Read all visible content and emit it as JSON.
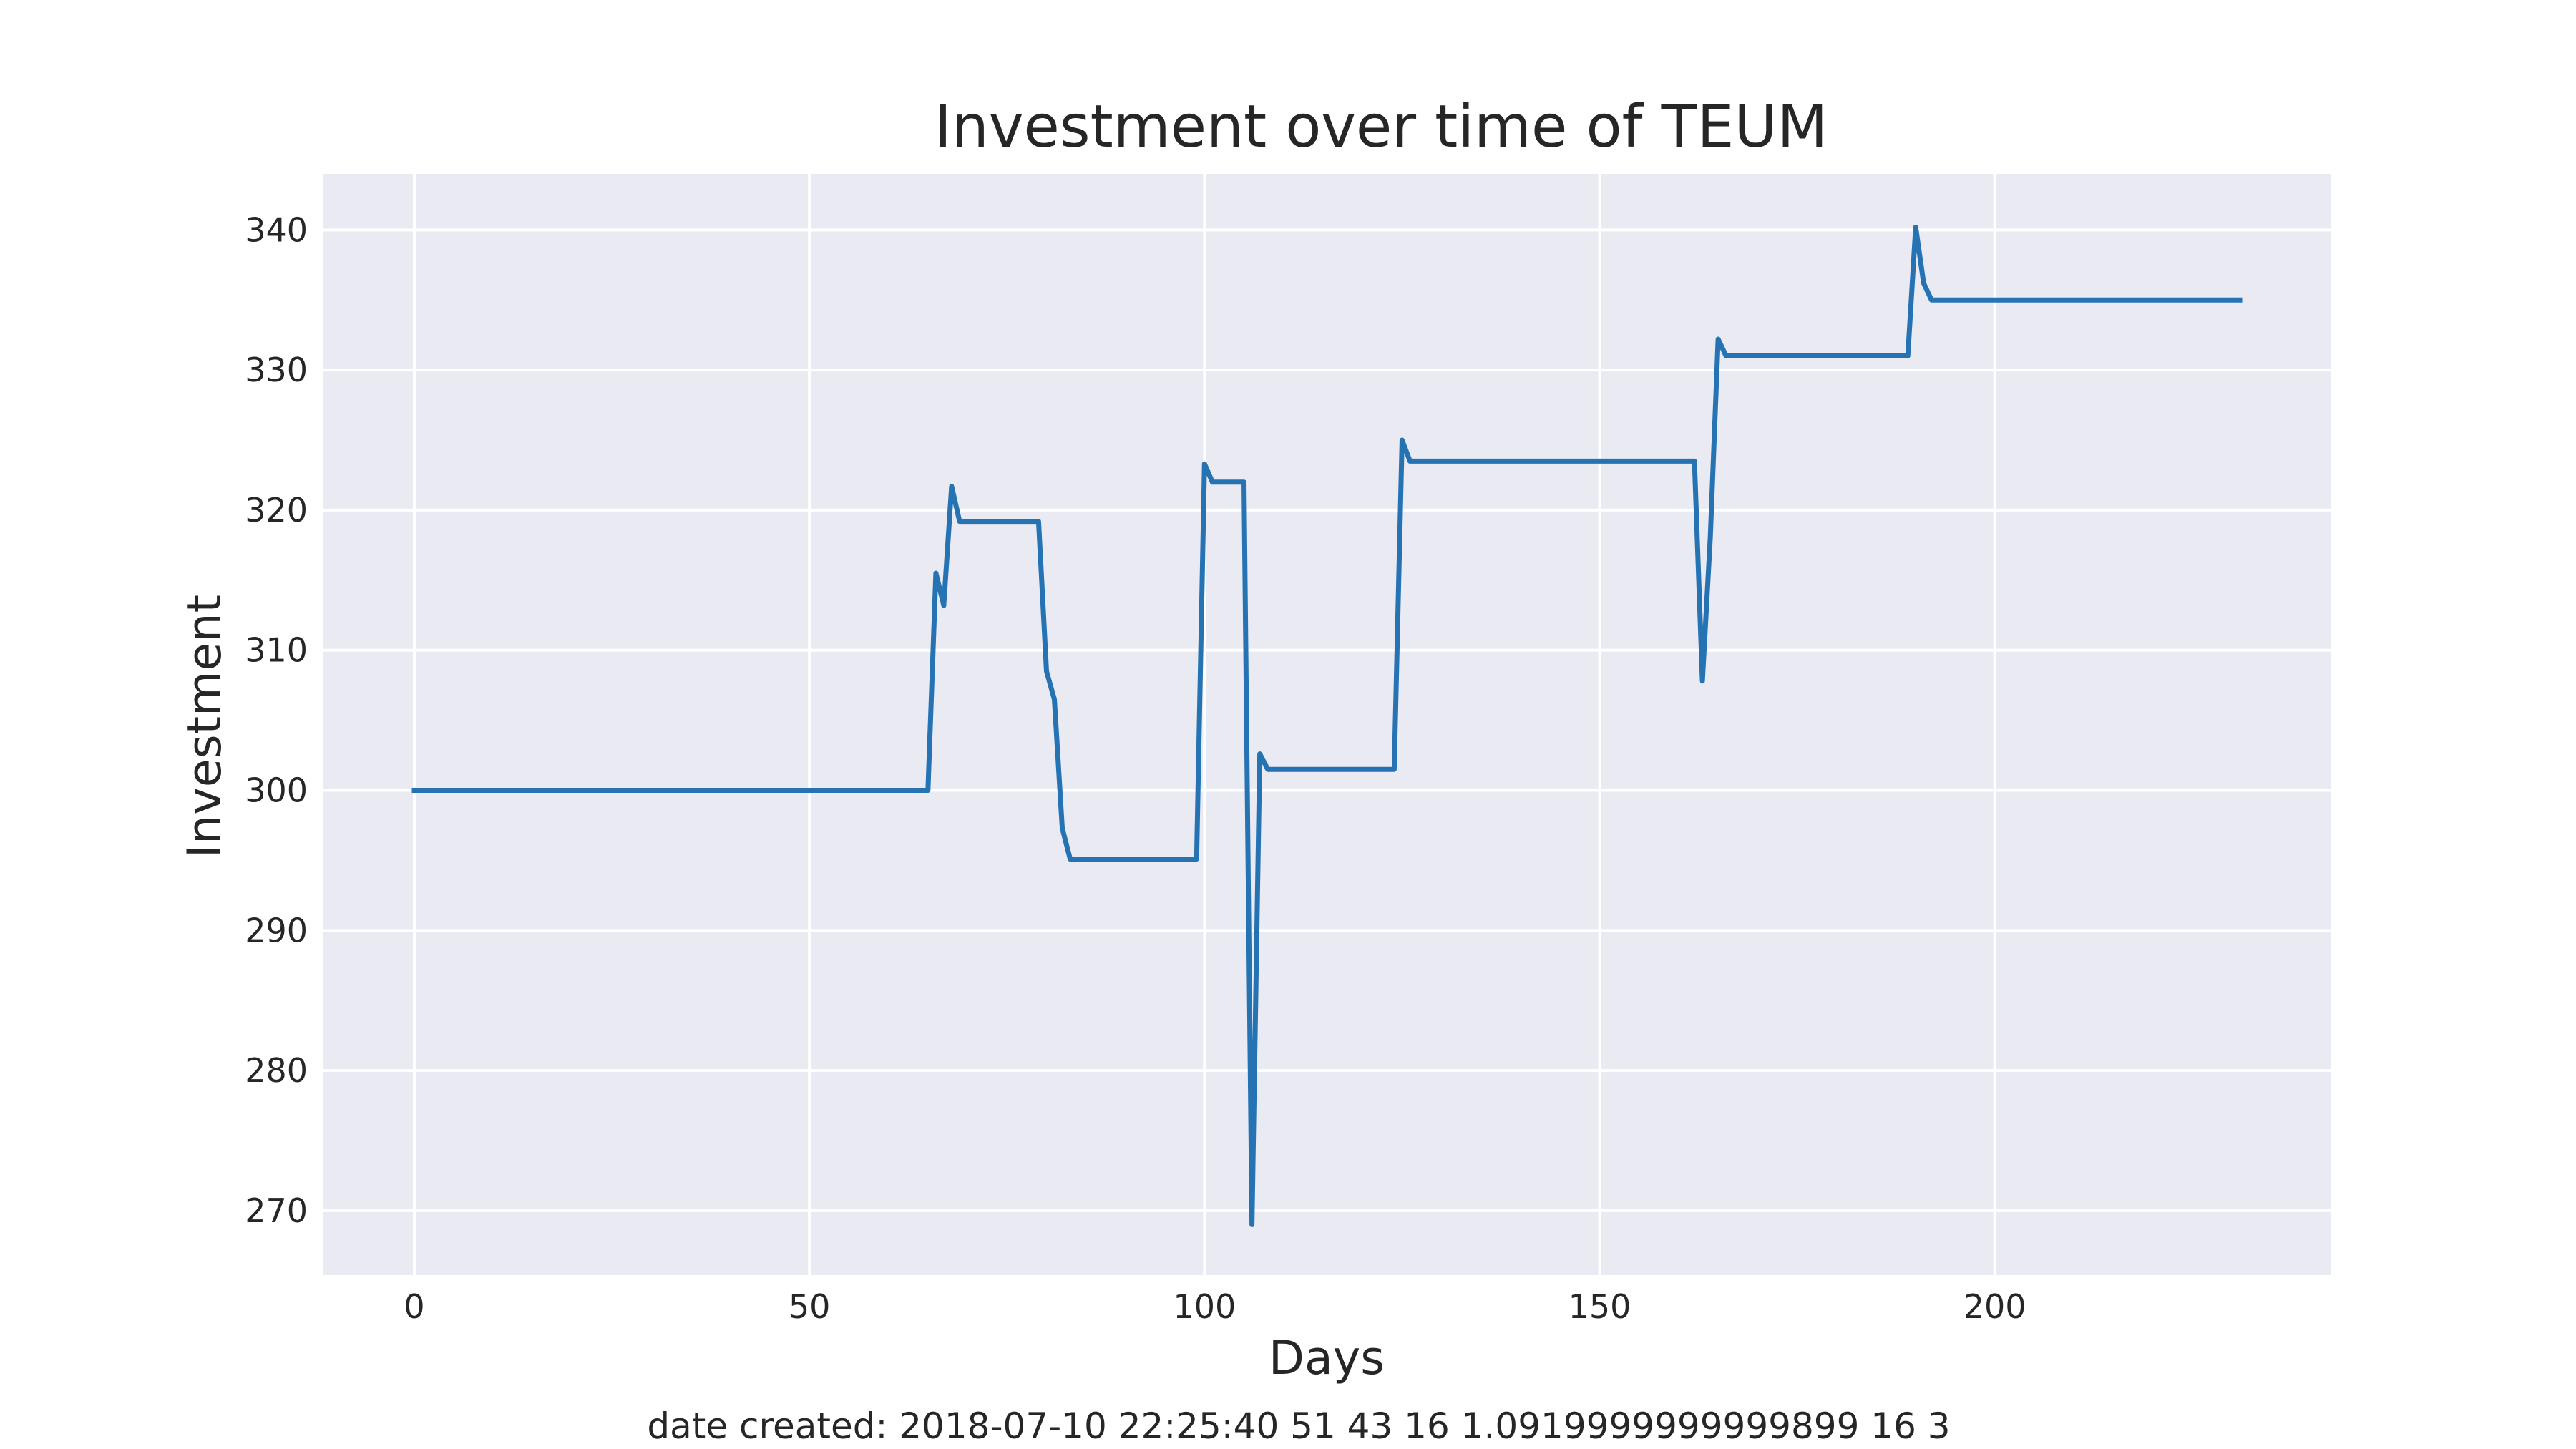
{
  "chart_data": {
    "type": "line",
    "title": "Investment over time of TEUM",
    "xlabel": "Days",
    "ylabel": "Investment",
    "xlim": [
      -11.5,
      242.5
    ],
    "ylim": [
      265.4,
      344
    ],
    "xticks": [
      0,
      50,
      100,
      150,
      200
    ],
    "yticks": [
      270,
      280,
      290,
      300,
      310,
      320,
      330,
      340
    ],
    "grid": true,
    "legend": "none",
    "colors": {
      "plot_background": "#eaeaf2",
      "grid": "#ffffff",
      "line": "#2673b4",
      "text": "#262626"
    },
    "series": [
      {
        "x": [
          0,
          65,
          66,
          67,
          68,
          69,
          79,
          80,
          81,
          82,
          83,
          99,
          100,
          101,
          105,
          106,
          107,
          108,
          124,
          125,
          126,
          162,
          163,
          164,
          165,
          166,
          189,
          190,
          191,
          192,
          231
        ],
        "y": [
          300,
          300,
          315.5,
          313.2,
          321.7,
          319.2,
          319.2,
          308.5,
          306.5,
          297.3,
          295.1,
          295.1,
          323.3,
          322,
          322,
          269,
          302.6,
          301.5,
          301.5,
          325,
          323.5,
          323.5,
          307.8,
          318,
          332.2,
          331,
          331,
          340.2,
          336.2,
          335,
          335
        ]
      }
    ],
    "footer": "date created: 2018-07-10 22:25:40 51 43 16 1.0919999999999899 16 3"
  }
}
